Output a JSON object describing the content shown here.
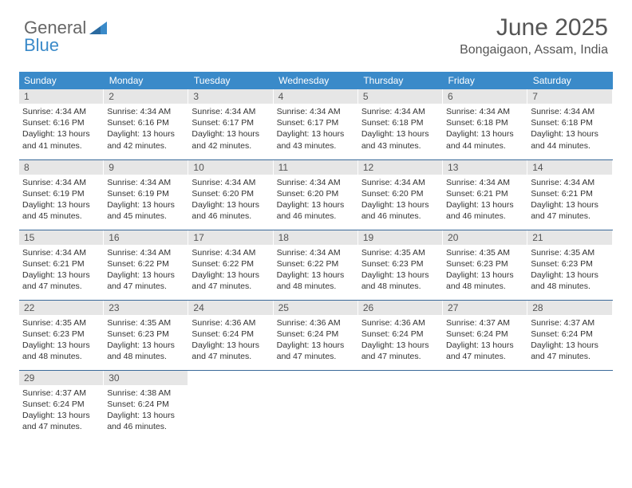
{
  "logo": {
    "word1": "General",
    "word2": "Blue"
  },
  "header": {
    "title": "June 2025",
    "location": "Bongaigaon, Assam, India"
  },
  "styling": {
    "header_bg": "#3a8ac9",
    "header_text": "#ffffff",
    "daynum_bg": "#e6e6e6",
    "daynum_text": "#555555",
    "row_divider": "#3a6a9a",
    "body_text": "#333333",
    "title_color": "#555555",
    "body_fontsize": 10.5,
    "header_fontsize": 12,
    "title_fontsize": 30,
    "location_fontsize": 16
  },
  "weekdays": [
    "Sunday",
    "Monday",
    "Tuesday",
    "Wednesday",
    "Thursday",
    "Friday",
    "Saturday"
  ],
  "labels": {
    "sunrise": "Sunrise:",
    "sunset": "Sunset:",
    "daylight": "Daylight:"
  },
  "days": [
    {
      "n": "1",
      "sunrise": "4:34 AM",
      "sunset": "6:16 PM",
      "daylight": "13 hours and 41 minutes."
    },
    {
      "n": "2",
      "sunrise": "4:34 AM",
      "sunset": "6:16 PM",
      "daylight": "13 hours and 42 minutes."
    },
    {
      "n": "3",
      "sunrise": "4:34 AM",
      "sunset": "6:17 PM",
      "daylight": "13 hours and 42 minutes."
    },
    {
      "n": "4",
      "sunrise": "4:34 AM",
      "sunset": "6:17 PM",
      "daylight": "13 hours and 43 minutes."
    },
    {
      "n": "5",
      "sunrise": "4:34 AM",
      "sunset": "6:18 PM",
      "daylight": "13 hours and 43 minutes."
    },
    {
      "n": "6",
      "sunrise": "4:34 AM",
      "sunset": "6:18 PM",
      "daylight": "13 hours and 44 minutes."
    },
    {
      "n": "7",
      "sunrise": "4:34 AM",
      "sunset": "6:18 PM",
      "daylight": "13 hours and 44 minutes."
    },
    {
      "n": "8",
      "sunrise": "4:34 AM",
      "sunset": "6:19 PM",
      "daylight": "13 hours and 45 minutes."
    },
    {
      "n": "9",
      "sunrise": "4:34 AM",
      "sunset": "6:19 PM",
      "daylight": "13 hours and 45 minutes."
    },
    {
      "n": "10",
      "sunrise": "4:34 AM",
      "sunset": "6:20 PM",
      "daylight": "13 hours and 46 minutes."
    },
    {
      "n": "11",
      "sunrise": "4:34 AM",
      "sunset": "6:20 PM",
      "daylight": "13 hours and 46 minutes."
    },
    {
      "n": "12",
      "sunrise": "4:34 AM",
      "sunset": "6:20 PM",
      "daylight": "13 hours and 46 minutes."
    },
    {
      "n": "13",
      "sunrise": "4:34 AM",
      "sunset": "6:21 PM",
      "daylight": "13 hours and 46 minutes."
    },
    {
      "n": "14",
      "sunrise": "4:34 AM",
      "sunset": "6:21 PM",
      "daylight": "13 hours and 47 minutes."
    },
    {
      "n": "15",
      "sunrise": "4:34 AM",
      "sunset": "6:21 PM",
      "daylight": "13 hours and 47 minutes."
    },
    {
      "n": "16",
      "sunrise": "4:34 AM",
      "sunset": "6:22 PM",
      "daylight": "13 hours and 47 minutes."
    },
    {
      "n": "17",
      "sunrise": "4:34 AM",
      "sunset": "6:22 PM",
      "daylight": "13 hours and 47 minutes."
    },
    {
      "n": "18",
      "sunrise": "4:34 AM",
      "sunset": "6:22 PM",
      "daylight": "13 hours and 48 minutes."
    },
    {
      "n": "19",
      "sunrise": "4:35 AM",
      "sunset": "6:23 PM",
      "daylight": "13 hours and 48 minutes."
    },
    {
      "n": "20",
      "sunrise": "4:35 AM",
      "sunset": "6:23 PM",
      "daylight": "13 hours and 48 minutes."
    },
    {
      "n": "21",
      "sunrise": "4:35 AM",
      "sunset": "6:23 PM",
      "daylight": "13 hours and 48 minutes."
    },
    {
      "n": "22",
      "sunrise": "4:35 AM",
      "sunset": "6:23 PM",
      "daylight": "13 hours and 48 minutes."
    },
    {
      "n": "23",
      "sunrise": "4:35 AM",
      "sunset": "6:23 PM",
      "daylight": "13 hours and 48 minutes."
    },
    {
      "n": "24",
      "sunrise": "4:36 AM",
      "sunset": "6:24 PM",
      "daylight": "13 hours and 47 minutes."
    },
    {
      "n": "25",
      "sunrise": "4:36 AM",
      "sunset": "6:24 PM",
      "daylight": "13 hours and 47 minutes."
    },
    {
      "n": "26",
      "sunrise": "4:36 AM",
      "sunset": "6:24 PM",
      "daylight": "13 hours and 47 minutes."
    },
    {
      "n": "27",
      "sunrise": "4:37 AM",
      "sunset": "6:24 PM",
      "daylight": "13 hours and 47 minutes."
    },
    {
      "n": "28",
      "sunrise": "4:37 AM",
      "sunset": "6:24 PM",
      "daylight": "13 hours and 47 minutes."
    },
    {
      "n": "29",
      "sunrise": "4:37 AM",
      "sunset": "6:24 PM",
      "daylight": "13 hours and 47 minutes."
    },
    {
      "n": "30",
      "sunrise": "4:38 AM",
      "sunset": "6:24 PM",
      "daylight": "13 hours and 46 minutes."
    }
  ]
}
